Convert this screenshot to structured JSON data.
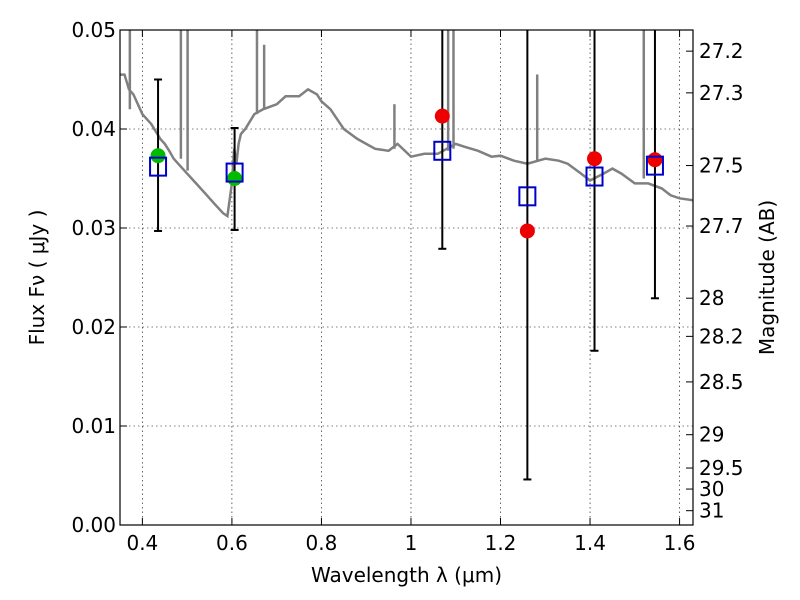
{
  "chart_data": {
    "type": "scatter",
    "xlabel": "Wavelength  λ (μm)",
    "ylabel": "Flux  Fν  ( μJy )",
    "y2label": "Magnitude (AB)",
    "xlim": [
      0.35,
      1.63
    ],
    "ylim": [
      0.0,
      0.05
    ],
    "grid": true,
    "x_ticks": [
      0.4,
      0.6,
      0.8,
      1.0,
      1.2,
      1.4,
      1.6
    ],
    "x_tick_labels": [
      "0.4",
      "0.6",
      "0.8",
      "1",
      "1.2",
      "1.4",
      "1.6"
    ],
    "y_ticks": [
      0.0,
      0.01,
      0.02,
      0.03,
      0.04,
      0.05
    ],
    "y_tick_labels": [
      "0.00",
      "0.01",
      "0.02",
      "0.03",
      "0.04",
      "0.05"
    ],
    "mag_ticks": [
      27.2,
      27.3,
      27.5,
      27.7,
      28,
      28.2,
      28.5,
      29,
      29.5,
      30,
      31
    ],
    "mag_tick_labels": [
      "27.2",
      "27.3",
      "27.5",
      "27.7",
      "28",
      "28.2",
      "28.5",
      "29",
      "29.5",
      "30",
      "31"
    ],
    "colors": {
      "model": "#808080",
      "green": "#00bb00",
      "red": "#ee0000",
      "box": "#0000cc",
      "errorbar": "#000000"
    },
    "series": [
      {
        "marker": "circle-green",
        "points": [
          {
            "x": 0.435,
            "y": 0.0373
          },
          {
            "x": 0.606,
            "y": 0.035
          }
        ]
      },
      {
        "marker": "circle-red",
        "points": [
          {
            "x": 1.07,
            "y": 0.0413
          },
          {
            "x": 1.26,
            "y": 0.0297
          },
          {
            "x": 1.41,
            "y": 0.037
          },
          {
            "x": 1.545,
            "y": 0.0369
          }
        ]
      },
      {
        "marker": "open-square-blue",
        "points": [
          {
            "x": 0.435,
            "y": 0.0362
          },
          {
            "x": 0.606,
            "y": 0.0356
          },
          {
            "x": 1.07,
            "y": 0.0378
          },
          {
            "x": 1.26,
            "y": 0.0332
          },
          {
            "x": 1.41,
            "y": 0.0352
          },
          {
            "x": 1.545,
            "y": 0.0363
          }
        ]
      }
    ],
    "error_bars": [
      {
        "x": 0.435,
        "low": 0.0297,
        "high": 0.045
      },
      {
        "x": 0.606,
        "low": 0.0298,
        "high": 0.0401
      },
      {
        "x": 1.07,
        "low": 0.0279,
        "high": 0.05
      },
      {
        "x": 1.26,
        "low": 0.0046,
        "high": 0.05
      },
      {
        "x": 1.41,
        "low": 0.0176,
        "high": 0.05
      },
      {
        "x": 1.545,
        "low": 0.0229,
        "high": 0.05
      }
    ],
    "model_spectrum": [
      [
        0.35,
        0.0455
      ],
      [
        0.36,
        0.0455
      ],
      [
        0.37,
        0.044
      ],
      [
        0.38,
        0.0435
      ],
      [
        0.39,
        0.0425
      ],
      [
        0.4,
        0.0415
      ],
      [
        0.42,
        0.0405
      ],
      [
        0.44,
        0.039
      ],
      [
        0.45,
        0.0385
      ],
      [
        0.46,
        0.0378
      ],
      [
        0.47,
        0.037
      ],
      [
        0.48,
        0.0365
      ],
      [
        0.5,
        0.0355
      ],
      [
        0.52,
        0.0345
      ],
      [
        0.54,
        0.0335
      ],
      [
        0.56,
        0.0325
      ],
      [
        0.58,
        0.0315
      ],
      [
        0.59,
        0.0312
      ],
      [
        0.6,
        0.0345
      ],
      [
        0.605,
        0.038
      ],
      [
        0.61,
        0.0365
      ],
      [
        0.615,
        0.0385
      ],
      [
        0.62,
        0.0395
      ],
      [
        0.63,
        0.04
      ],
      [
        0.65,
        0.0415
      ],
      [
        0.67,
        0.042
      ],
      [
        0.7,
        0.0425
      ],
      [
        0.72,
        0.0433
      ],
      [
        0.75,
        0.0433
      ],
      [
        0.77,
        0.044
      ],
      [
        0.79,
        0.0435
      ],
      [
        0.8,
        0.0428
      ],
      [
        0.82,
        0.042
      ],
      [
        0.85,
        0.04
      ],
      [
        0.88,
        0.039
      ],
      [
        0.9,
        0.0385
      ],
      [
        0.92,
        0.038
      ],
      [
        0.95,
        0.0378
      ],
      [
        0.97,
        0.0385
      ],
      [
        1.0,
        0.0372
      ],
      [
        1.03,
        0.0375
      ],
      [
        1.06,
        0.0375
      ],
      [
        1.1,
        0.0385
      ],
      [
        1.12,
        0.0382
      ],
      [
        1.15,
        0.0378
      ],
      [
        1.18,
        0.0372
      ],
      [
        1.2,
        0.0373
      ],
      [
        1.23,
        0.0368
      ],
      [
        1.26,
        0.0365
      ],
      [
        1.3,
        0.037
      ],
      [
        1.33,
        0.0368
      ],
      [
        1.35,
        0.0365
      ],
      [
        1.38,
        0.0355
      ],
      [
        1.4,
        0.0348
      ],
      [
        1.43,
        0.0355
      ],
      [
        1.45,
        0.036
      ],
      [
        1.47,
        0.0355
      ],
      [
        1.5,
        0.0345
      ],
      [
        1.53,
        0.0345
      ],
      [
        1.56,
        0.034
      ],
      [
        1.58,
        0.0333
      ],
      [
        1.6,
        0.033
      ],
      [
        1.63,
        0.0328
      ]
    ],
    "emission_lines": [
      [
        0.372,
        0.042,
        0.05
      ],
      [
        0.486,
        0.037,
        0.05
      ],
      [
        0.501,
        0.0358,
        0.05
      ],
      [
        0.656,
        0.0415,
        0.05
      ],
      [
        0.672,
        0.042,
        0.048
      ],
      [
        0.963,
        0.038,
        0.042
      ],
      [
        1.083,
        0.0378,
        0.05
      ],
      [
        1.095,
        0.038,
        0.05
      ],
      [
        1.282,
        0.0368,
        0.045
      ],
      [
        1.52,
        0.035,
        0.05
      ]
    ]
  }
}
